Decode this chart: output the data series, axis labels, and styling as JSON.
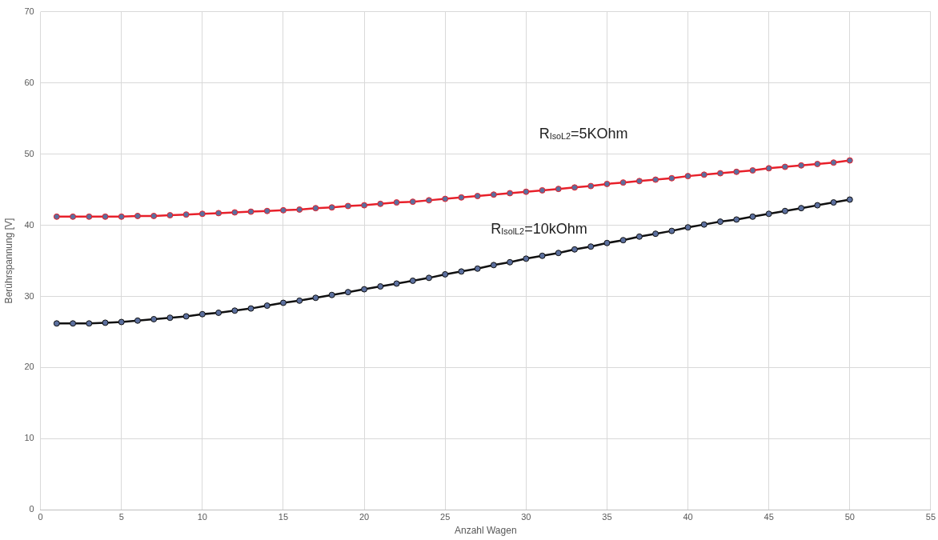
{
  "chart_data": {
    "type": "line",
    "xlabel": "Anzahl Wagen",
    "ylabel": "Berührspannung [V]",
    "x": [
      1,
      2,
      3,
      4,
      5,
      6,
      7,
      8,
      9,
      10,
      11,
      12,
      13,
      14,
      15,
      16,
      17,
      18,
      19,
      20,
      21,
      22,
      23,
      24,
      25,
      26,
      27,
      28,
      29,
      30,
      31,
      32,
      33,
      34,
      35,
      36,
      37,
      38,
      39,
      40,
      41,
      42,
      43,
      44,
      45,
      46,
      47,
      48,
      49,
      50
    ],
    "series": [
      {
        "color": "#e8202a",
        "values": [
          41.2,
          41.2,
          41.2,
          41.2,
          41.2,
          41.3,
          41.3,
          41.4,
          41.5,
          41.6,
          41.7,
          41.8,
          41.9,
          42.0,
          42.1,
          42.2,
          42.4,
          42.5,
          42.7,
          42.8,
          43.0,
          43.2,
          43.3,
          43.5,
          43.7,
          43.9,
          44.1,
          44.3,
          44.5,
          44.7,
          44.9,
          45.1,
          45.3,
          45.5,
          45.8,
          46.0,
          46.2,
          46.4,
          46.6,
          46.9,
          47.1,
          47.3,
          47.5,
          47.7,
          48.0,
          48.2,
          48.4,
          48.6,
          48.8,
          49.1
        ]
      },
      {
        "color": "#111111",
        "values": [
          26.2,
          26.2,
          26.2,
          26.3,
          26.4,
          26.6,
          26.8,
          27.0,
          27.2,
          27.5,
          27.7,
          28.0,
          28.3,
          28.7,
          29.1,
          29.4,
          29.8,
          30.2,
          30.6,
          31.0,
          31.4,
          31.8,
          32.2,
          32.6,
          33.1,
          33.5,
          33.9,
          34.4,
          34.8,
          35.3,
          35.7,
          36.1,
          36.6,
          37.0,
          37.5,
          37.9,
          38.4,
          38.8,
          39.2,
          39.7,
          40.1,
          40.5,
          40.8,
          41.2,
          41.6,
          42.0,
          42.4,
          42.8,
          43.2,
          43.6
        ]
      }
    ],
    "annotations": [
      "R$_{IsoL2}$=5KOhm",
      "R$_{IsolL2}$=10kOhm"
    ],
    "xlim": [
      0,
      55
    ],
    "xticks": [
      0,
      5,
      10,
      15,
      20,
      25,
      30,
      35,
      40,
      45,
      50,
      55
    ],
    "ylim": [
      0,
      70
    ],
    "yticks": [
      0,
      10,
      20,
      30,
      40,
      50,
      60,
      70
    ],
    "grid": true,
    "legend": false,
    "marker": "circle",
    "line_style": "solid"
  }
}
